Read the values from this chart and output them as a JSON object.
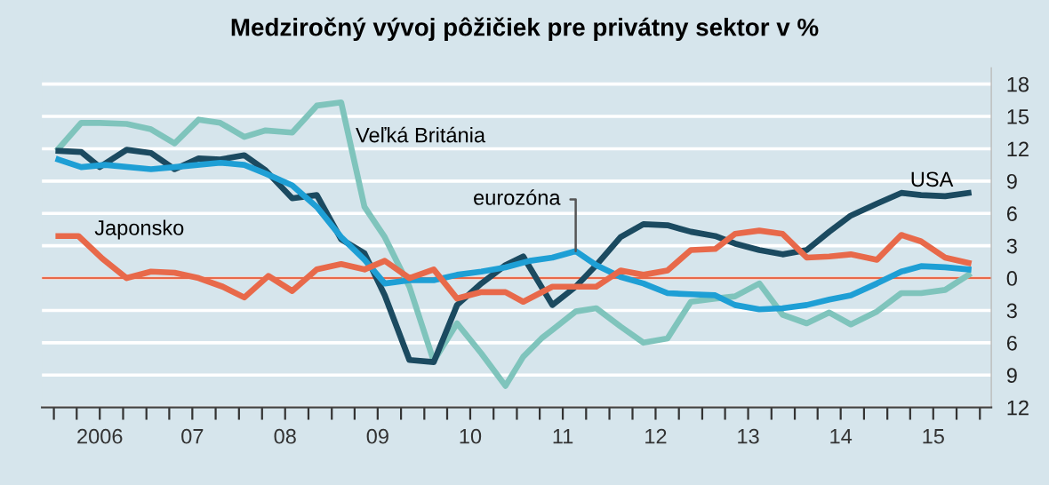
{
  "chart_data": {
    "type": "line",
    "title": "Medziročný vývoj pôžičiek pre privátny sektor v %",
    "xlim": [
      "2005-11-15",
      "2016-02-15"
    ],
    "ylim": [
      -12,
      19.5
    ],
    "xticks": [
      {
        "value": "2006-01-01",
        "label": null
      },
      {
        "value": "2006-04-01",
        "label": null
      },
      {
        "value": "2006-07-01",
        "label": "2006"
      },
      {
        "value": "2006-10-01",
        "label": null
      },
      {
        "value": "2007-01-01",
        "label": null
      },
      {
        "value": "2007-04-01",
        "label": null
      },
      {
        "value": "2007-07-01",
        "label": "07"
      },
      {
        "value": "2007-10-01",
        "label": null
      },
      {
        "value": "2008-01-01",
        "label": null
      },
      {
        "value": "2008-04-01",
        "label": null
      },
      {
        "value": "2008-07-01",
        "label": "08"
      },
      {
        "value": "2008-10-01",
        "label": null
      },
      {
        "value": "2009-01-01",
        "label": null
      },
      {
        "value": "2009-04-01",
        "label": null
      },
      {
        "value": "2009-07-01",
        "label": "09"
      },
      {
        "value": "2009-10-01",
        "label": null
      },
      {
        "value": "2010-01-01",
        "label": null
      },
      {
        "value": "2010-04-01",
        "label": null
      },
      {
        "value": "2010-07-01",
        "label": "10"
      },
      {
        "value": "2010-10-01",
        "label": null
      },
      {
        "value": "2011-01-01",
        "label": null
      },
      {
        "value": "2011-04-01",
        "label": null
      },
      {
        "value": "2011-07-01",
        "label": "11"
      },
      {
        "value": "2011-10-01",
        "label": null
      },
      {
        "value": "2012-01-01",
        "label": null
      },
      {
        "value": "2012-04-01",
        "label": null
      },
      {
        "value": "2012-07-01",
        "label": "12"
      },
      {
        "value": "2012-10-01",
        "label": null
      },
      {
        "value": "2013-01-01",
        "label": null
      },
      {
        "value": "2013-04-01",
        "label": null
      },
      {
        "value": "2013-07-01",
        "label": "13"
      },
      {
        "value": "2013-10-01",
        "label": null
      },
      {
        "value": "2014-01-01",
        "label": null
      },
      {
        "value": "2014-04-01",
        "label": null
      },
      {
        "value": "2014-07-01",
        "label": "14"
      },
      {
        "value": "2014-10-01",
        "label": null
      },
      {
        "value": "2015-01-01",
        "label": null
      },
      {
        "value": "2015-04-01",
        "label": null
      },
      {
        "value": "2015-07-01",
        "label": "15"
      },
      {
        "value": "2015-10-01",
        "label": null
      },
      {
        "value": "2016-01-01",
        "label": null
      }
    ],
    "yticks": [
      {
        "value": -12,
        "label": "12"
      },
      {
        "value": -9,
        "label": "9"
      },
      {
        "value": -6,
        "label": "6"
      },
      {
        "value": -3,
        "label": "3"
      },
      0,
      3,
      6,
      9,
      12,
      15,
      18
    ],
    "grid": "y",
    "legend": false,
    "ref_lines": [
      {
        "axis": "y",
        "value": 0,
        "color": "#e8694a"
      }
    ],
    "series": [
      {
        "name": "Veľká Británia",
        "color": "#7fc4bc",
        "x": [
          "2006-01-19",
          "2006-04-19",
          "2006-07-01",
          "2006-10-15",
          "2007-01-19",
          "2007-04-22",
          "2007-07-26",
          "2007-10-19",
          "2008-01-22",
          "2008-04-15",
          "2008-07-29",
          "2008-11-03",
          "2009-02-07",
          "2009-05-10",
          "2009-07-29",
          "2009-11-03",
          "2010-02-07",
          "2010-05-10",
          "2010-08-14",
          "2010-11-17",
          "2011-01-26",
          "2011-04-08",
          "2011-05-21",
          "2011-08-21",
          "2011-11-10",
          "2012-02-14",
          "2012-05-14",
          "2012-08-17",
          "2012-11-17",
          "2013-02-21",
          "2013-05-10",
          "2013-08-14",
          "2013-11-14",
          "2014-02-17",
          "2014-05-17",
          "2014-08-10",
          "2014-11-21",
          "2015-02-25",
          "2015-05-14",
          "2015-08-17",
          "2015-11-17"
        ],
        "values": [
          12.0,
          14.4,
          14.4,
          14.3,
          13.8,
          12.5,
          14.7,
          14.4,
          13.1,
          13.7,
          13.5,
          16.0,
          16.3,
          6.6,
          3.8,
          -0.8,
          -7.7,
          -4.2,
          -7.0,
          -10.0,
          -7.3,
          -5.6,
          -4.8,
          -3.1,
          -2.8,
          -4.5,
          -6.0,
          -5.6,
          -2.2,
          -1.9,
          -1.7,
          -0.5,
          -3.4,
          -4.2,
          -3.2,
          -4.3,
          -3.1,
          -1.4,
          -1.4,
          -1.1,
          0.3
        ]
      },
      {
        "name": "USA",
        "color": "#1b4a60",
        "x": [
          "2006-01-19",
          "2006-04-19",
          "2006-07-01",
          "2006-10-15",
          "2007-01-19",
          "2007-04-22",
          "2007-07-26",
          "2007-10-19",
          "2008-01-22",
          "2008-04-15",
          "2008-07-29",
          "2008-11-03",
          "2009-02-07",
          "2009-05-10",
          "2009-07-29",
          "2009-11-03",
          "2010-02-07",
          "2010-05-10",
          "2010-08-14",
          "2010-11-17",
          "2011-01-26",
          "2011-05-21",
          "2011-08-21",
          "2011-11-10",
          "2012-02-14",
          "2012-05-14",
          "2012-08-17",
          "2012-11-17",
          "2013-02-21",
          "2013-05-10",
          "2013-08-14",
          "2013-11-14",
          "2014-02-17",
          "2014-05-17",
          "2014-08-10",
          "2014-11-21",
          "2015-02-25",
          "2015-05-14",
          "2015-08-17",
          "2015-11-17"
        ],
        "values": [
          11.8,
          11.7,
          10.3,
          11.9,
          11.6,
          10.1,
          11.1,
          11.0,
          11.4,
          10.0,
          7.4,
          7.7,
          3.6,
          2.3,
          -1.6,
          -7.6,
          -7.8,
          -2.5,
          -0.5,
          1.2,
          2.0,
          -2.5,
          -0.8,
          1.2,
          3.8,
          5.0,
          4.9,
          4.3,
          3.9,
          3.2,
          2.6,
          2.2,
          2.6,
          4.3,
          5.8,
          6.9,
          7.9,
          7.7,
          7.6,
          7.9
        ]
      },
      {
        "name": "eurozóna",
        "color": "#1e9fd5",
        "x": [
          "2006-01-19",
          "2006-04-19",
          "2006-07-22",
          "2007-01-19",
          "2007-04-22",
          "2007-10-19",
          "2008-01-22",
          "2008-04-15",
          "2008-07-29",
          "2008-11-03",
          "2009-02-07",
          "2009-05-10",
          "2009-07-29",
          "2009-11-03",
          "2010-02-07",
          "2010-05-10",
          "2010-08-14",
          "2010-11-17",
          "2011-02-21",
          "2011-05-21",
          "2011-08-21",
          "2011-11-10",
          "2012-02-14",
          "2012-05-14",
          "2012-08-17",
          "2012-11-17",
          "2013-02-21",
          "2013-05-10",
          "2013-08-14",
          "2013-11-14",
          "2014-02-17",
          "2014-05-17",
          "2014-08-10",
          "2014-11-21",
          "2015-02-25",
          "2015-05-14",
          "2015-08-17",
          "2015-11-17"
        ],
        "values": [
          11.0,
          10.3,
          10.5,
          10.1,
          10.3,
          10.7,
          10.5,
          9.7,
          8.6,
          6.6,
          3.8,
          1.7,
          -0.5,
          -0.2,
          -0.2,
          0.3,
          0.6,
          1.0,
          1.6,
          1.9,
          2.5,
          1.2,
          0.1,
          -0.5,
          -1.4,
          -1.5,
          -1.6,
          -2.5,
          -2.9,
          -2.8,
          -2.5,
          -2.0,
          -1.6,
          -0.5,
          0.6,
          1.1,
          1.0,
          0.8
        ]
      },
      {
        "name": "Japonsko",
        "color": "#e8694a",
        "x": [
          "2006-01-19",
          "2006-04-08",
          "2006-07-11",
          "2006-10-15",
          "2007-01-19",
          "2007-04-22",
          "2007-07-26",
          "2007-10-29",
          "2008-01-22",
          "2008-04-26",
          "2008-07-29",
          "2008-11-03",
          "2009-02-07",
          "2009-05-10",
          "2009-07-29",
          "2009-11-03",
          "2010-02-07",
          "2010-05-10",
          "2010-08-14",
          "2010-11-17",
          "2011-01-26",
          "2011-05-21",
          "2011-08-21",
          "2011-11-10",
          "2012-02-14",
          "2012-05-14",
          "2012-08-17",
          "2012-11-17",
          "2013-02-21",
          "2013-05-10",
          "2013-08-14",
          "2013-11-14",
          "2014-02-17",
          "2014-05-17",
          "2014-08-10",
          "2014-11-21",
          "2015-02-25",
          "2015-05-14",
          "2015-08-17",
          "2015-11-17"
        ],
        "values": [
          3.9,
          3.9,
          1.8,
          0.0,
          0.6,
          0.5,
          0.0,
          -0.8,
          -1.8,
          0.2,
          -1.2,
          0.8,
          1.3,
          0.8,
          1.6,
          0.0,
          0.8,
          -1.9,
          -1.3,
          -1.3,
          -2.2,
          -0.8,
          -0.8,
          -0.8,
          0.7,
          0.3,
          0.7,
          2.6,
          2.7,
          4.1,
          4.4,
          4.1,
          1.9,
          2.0,
          2.2,
          1.7,
          4.0,
          3.4,
          1.9,
          1.4
        ]
      }
    ]
  }
}
